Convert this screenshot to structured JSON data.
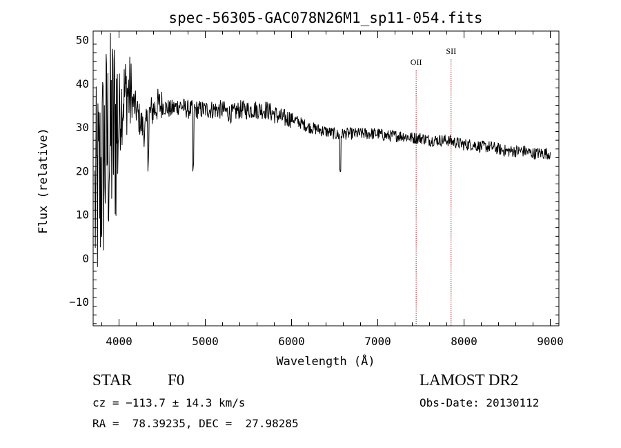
{
  "chart_data": {
    "type": "line",
    "title": "spec-56305-GAC078N26M1_sp11-054.fits",
    "xlabel": "Wavelength (Å)",
    "ylabel": "Flux (relative)",
    "xlim": [
      3700,
      9100
    ],
    "ylim": [
      -15.5,
      52
    ],
    "x_ticks": [
      "4000",
      "5000",
      "6000",
      "7000",
      "8000",
      "9000"
    ],
    "y_ticks": [
      "−10",
      "0",
      "10",
      "20",
      "30",
      "40",
      "50"
    ],
    "grid": false,
    "series": [
      {
        "x": [
          3700,
          3750,
          3800,
          3850,
          3900,
          3950,
          4000,
          4050,
          4100,
          4150,
          4200,
          4250,
          4300,
          4350,
          4400,
          4450,
          4500,
          4600,
          4700,
          4800,
          4850,
          4900,
          5000,
          5100,
          5200,
          5300,
          5400,
          5500,
          5600,
          5700,
          5800,
          5900,
          6000,
          6100,
          6200,
          6300,
          6400,
          6500,
          6563,
          6600,
          6700,
          6800,
          6900,
          7000,
          7100,
          7200,
          7300,
          7400,
          7500,
          7600,
          7700,
          7800,
          7900,
          8000,
          8100,
          8200,
          8300,
          8400,
          8500,
          8600,
          8700,
          8800,
          8900,
          9000
        ],
        "y": [
          10,
          15,
          20,
          25,
          27,
          30,
          33,
          37,
          38,
          36,
          34,
          31,
          29,
          33,
          34,
          35,
          35,
          34,
          35,
          34,
          34,
          34,
          34,
          34,
          34,
          33,
          34,
          34,
          34,
          34,
          33,
          32,
          32,
          31,
          30,
          29.5,
          29,
          28.5,
          28,
          28.5,
          28.5,
          28.5,
          28.5,
          28.5,
          28,
          28,
          28,
          27.5,
          27.5,
          27,
          27,
          27,
          26.5,
          26,
          26,
          25.5,
          25.5,
          25,
          24.5,
          24.5,
          24.5,
          24,
          24,
          24
        ]
      }
    ],
    "lines": [
      {
        "label": "OII",
        "x": 7445
      },
      {
        "label": "SII",
        "x": 7850
      }
    ],
    "line_color": "#a0282d"
  },
  "info": {
    "object_class": "STAR",
    "subclass": "F0",
    "survey": "LAMOST DR2",
    "redshift": "cz = −113.7 ± 14.3 km/s",
    "obs_date": "Obs-Date: 20130112",
    "coords": "RA =  78.39235, DEC =  27.98285"
  }
}
